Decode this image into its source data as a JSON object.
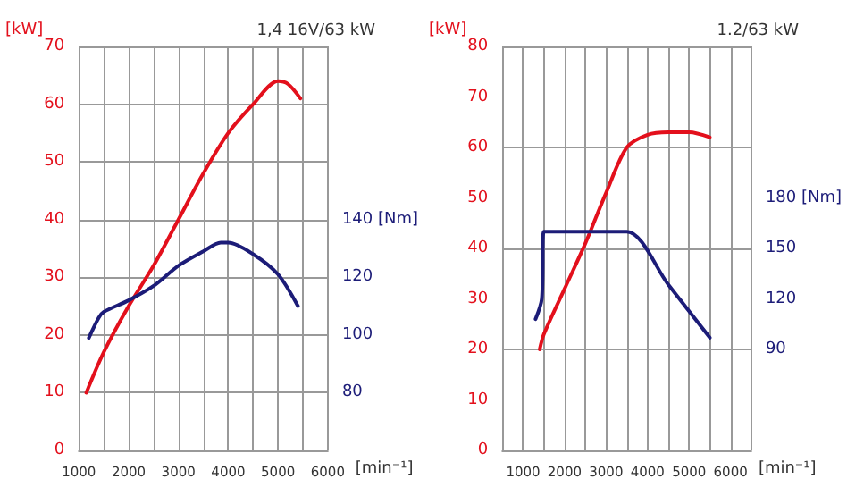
{
  "chart_data": [
    {
      "type": "line",
      "title": "1,4 16V/63 kW",
      "xlabel": "[min⁻¹]",
      "ylabel": "[kW]",
      "xlim": [
        1000,
        6000
      ],
      "xticks": [
        1000,
        2000,
        3000,
        4000,
        5000,
        6000
      ],
      "ylim": [
        0,
        70
      ],
      "yticks": [
        0,
        10,
        20,
        30,
        40,
        50,
        60,
        70
      ],
      "y2lim": [
        60,
        200
      ],
      "y2ticks": [
        80,
        100,
        120,
        {
          "value": 140,
          "label": "140 [Nm]"
        }
      ],
      "grid": true,
      "marker": "none",
      "line_style": "solid",
      "series": [
        {
          "color": "#e3101c",
          "x": [
            1150,
            1500,
            2000,
            2500,
            3000,
            3500,
            4000,
            4500,
            5000,
            5200,
            5450
          ],
          "values": [
            10,
            17,
            25,
            32,
            40,
            48,
            55,
            60,
            64,
            63.5,
            61
          ]
        },
        {
          "color": "#1c1c78",
          "axis": "y2",
          "x": [
            1200,
            1400,
            1500,
            2000,
            2500,
            3000,
            3500,
            3850,
            4000,
            4500,
            5000,
            5400
          ],
          "values": [
            99,
            106,
            108,
            112,
            117,
            124,
            129,
            132,
            132,
            128,
            121,
            110
          ]
        }
      ]
    },
    {
      "type": "line",
      "title": "1.2/63 kW",
      "xlabel": "[min⁻¹]",
      "ylabel": "[kW]",
      "xlim": [
        500,
        6500
      ],
      "xticks": [
        1000,
        2000,
        3000,
        4000,
        5000,
        6000
      ],
      "ylim": [
        0,
        80
      ],
      "yticks": [
        0,
        10,
        20,
        30,
        40,
        50,
        60,
        70,
        80
      ],
      "y2lim": [
        30,
        270
      ],
      "y2ticks": [
        90,
        120,
        150,
        {
          "value": 180,
          "label": "180 [Nm]"
        }
      ],
      "grid": true,
      "marker": "none",
      "line_style": "solid",
      "series": [
        {
          "color": "#e3101c",
          "x": [
            1400,
            1500,
            2000,
            2500,
            3000,
            3500,
            4000,
            4500,
            5000,
            5500
          ],
          "values": [
            20,
            23,
            32,
            41,
            51,
            60,
            62.5,
            63,
            63,
            62
          ]
        },
        {
          "color": "#1c1c78",
          "axis": "y2",
          "x": [
            1300,
            1450,
            1500,
            2500,
            3500,
            4500,
            5500
          ],
          "values": [
            108,
            120,
            160,
            160,
            160,
            128.5,
            97
          ]
        }
      ]
    }
  ]
}
